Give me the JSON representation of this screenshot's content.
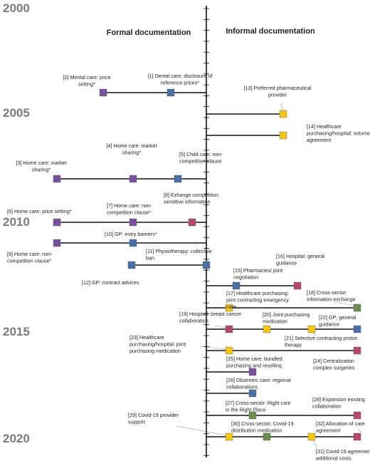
{
  "headers": {
    "formal": "Formal documentation",
    "informal": "Informal documentation"
  },
  "years": [
    "2000",
    "2005",
    "2010",
    "2015",
    "2020"
  ],
  "colors": {
    "purple": "#7b4fa0",
    "blue": "#4a6fa5",
    "pink": "#b54a6e",
    "yellow": "#f5c518",
    "green": "#6b8e4e",
    "line": "#111111",
    "year": "#7a7a7a"
  },
  "items": [
    {
      "id": 1,
      "lines": [
        "[1] Dental care: disclosure of",
        "reference prices*"
      ],
      "color": "blue",
      "side": "formal"
    },
    {
      "id": 2,
      "lines": [
        "[2] Mental care: price",
        "setting*"
      ],
      "color": "purple",
      "side": "formal"
    },
    {
      "id": 3,
      "lines": [
        "[3] Home care: market",
        "sharing*"
      ],
      "color": "purple",
      "side": "formal"
    },
    {
      "id": 4,
      "lines": [
        "[4] Home care: market",
        "sharing*"
      ],
      "color": "purple",
      "side": "formal"
    },
    {
      "id": 5,
      "lines": [
        "[5] Child care: non-",
        "competition clause"
      ],
      "color": "blue",
      "side": "formal"
    },
    {
      "id": 6,
      "lines": [
        "[6] Home care: price setting*"
      ],
      "color": "purple",
      "side": "formal"
    },
    {
      "id": 7,
      "lines": [
        "[7] Home care: non-",
        "competition clause*"
      ],
      "color": "purple",
      "side": "formal"
    },
    {
      "id": 8,
      "lines": [
        "[8] Exhange competition",
        "sensitive information"
      ],
      "color": "pink",
      "side": "formal"
    },
    {
      "id": 9,
      "lines": [
        "[9] Home care: non-",
        "competition clause*"
      ],
      "color": "purple",
      "side": "formal"
    },
    {
      "id": 10,
      "lines": [
        "[10] GP: entry barriers*"
      ],
      "color": "blue",
      "side": "formal"
    },
    {
      "id": 11,
      "lines": [
        "[11] Physiotherapy: collective",
        "ban"
      ],
      "color": "blue",
      "side": "formal"
    },
    {
      "id": 12,
      "lines": [
        "[12] GP: contract advices"
      ],
      "color": "blue",
      "side": "formal"
    },
    {
      "id": 13,
      "lines": [
        "[13] Preferred pharmaceutical",
        "provider"
      ],
      "color": "yellow",
      "side": "informal"
    },
    {
      "id": 14,
      "lines": [
        "[14] Healthcare",
        "purchasing/hospital: volume",
        "agreement"
      ],
      "color": "yellow",
      "side": "informal"
    },
    {
      "id": 15,
      "lines": [
        "[15] Pharmacies/ joint",
        "negotiation"
      ],
      "color": "blue",
      "side": "informal"
    },
    {
      "id": 16,
      "lines": [
        "[16] Hospital: general",
        "guidance"
      ],
      "color": "pink",
      "side": "informal"
    },
    {
      "id": 17,
      "lines": [
        "[17] Healthcare purchasing:",
        "joint contracting emergency",
        "care"
      ],
      "color": "yellow",
      "side": "informal"
    },
    {
      "id": 18,
      "lines": [
        "[18] Cross-sector:",
        "information exchange"
      ],
      "color": "green",
      "side": "informal"
    },
    {
      "id": 19,
      "lines": [
        "[19] Hospital: breast cancer",
        "collaboration"
      ],
      "color": "pink",
      "side": "informal"
    },
    {
      "id": 20,
      "lines": [
        "[20] Joint purchasing",
        "medication"
      ],
      "color": "yellow",
      "side": "informal"
    },
    {
      "id": 21,
      "lines": [
        "[21] Selective contracting proton",
        "therapy"
      ],
      "color": "yellow",
      "side": "informal"
    },
    {
      "id": 22,
      "lines": [
        "[22] GP: general",
        "guidance"
      ],
      "color": "blue",
      "side": "informal"
    },
    {
      "id": 23,
      "lines": [
        "[23] Healthcare",
        "purchasing/hospital: joint",
        "purchasing medication"
      ],
      "color": "yellow",
      "side": "informal"
    },
    {
      "id": 24,
      "lines": [
        "[24] Centralization",
        "complex surgeries"
      ],
      "color": "pink",
      "side": "informal"
    },
    {
      "id": 25,
      "lines": [
        "[25] Home care: bundled",
        "purchasing and reselling"
      ],
      "color": "purple",
      "side": "informal"
    },
    {
      "id": 26,
      "lines": [
        "[26] Obstretric care: regional",
        "collaborations"
      ],
      "color": "blue",
      "side": "informal"
    },
    {
      "id": 27,
      "lines": [
        "[27] Cross-sector: Right care",
        "in the Right Place"
      ],
      "color": "green",
      "side": "informal"
    },
    {
      "id": 28,
      "lines": [
        "[28] Expansion existing",
        "collaboration"
      ],
      "color": "pink",
      "side": "informal"
    },
    {
      "id": 29,
      "lines": [
        "[29] Covid-19 provider",
        "support"
      ],
      "color": "yellow",
      "side": "informal"
    },
    {
      "id": 30,
      "lines": [
        "[30] Cross-sector: Covid-19",
        "distribution medication"
      ],
      "color": "green",
      "side": "informal"
    },
    {
      "id": 31,
      "lines": [
        "[31] Covid-19 agreement",
        "additional costs"
      ],
      "color": "yellow",
      "side": "informal"
    },
    {
      "id": 32,
      "lines": [
        "[32] Allocation of care",
        "agreement"
      ],
      "color": "pink",
      "side": "informal"
    }
  ]
}
